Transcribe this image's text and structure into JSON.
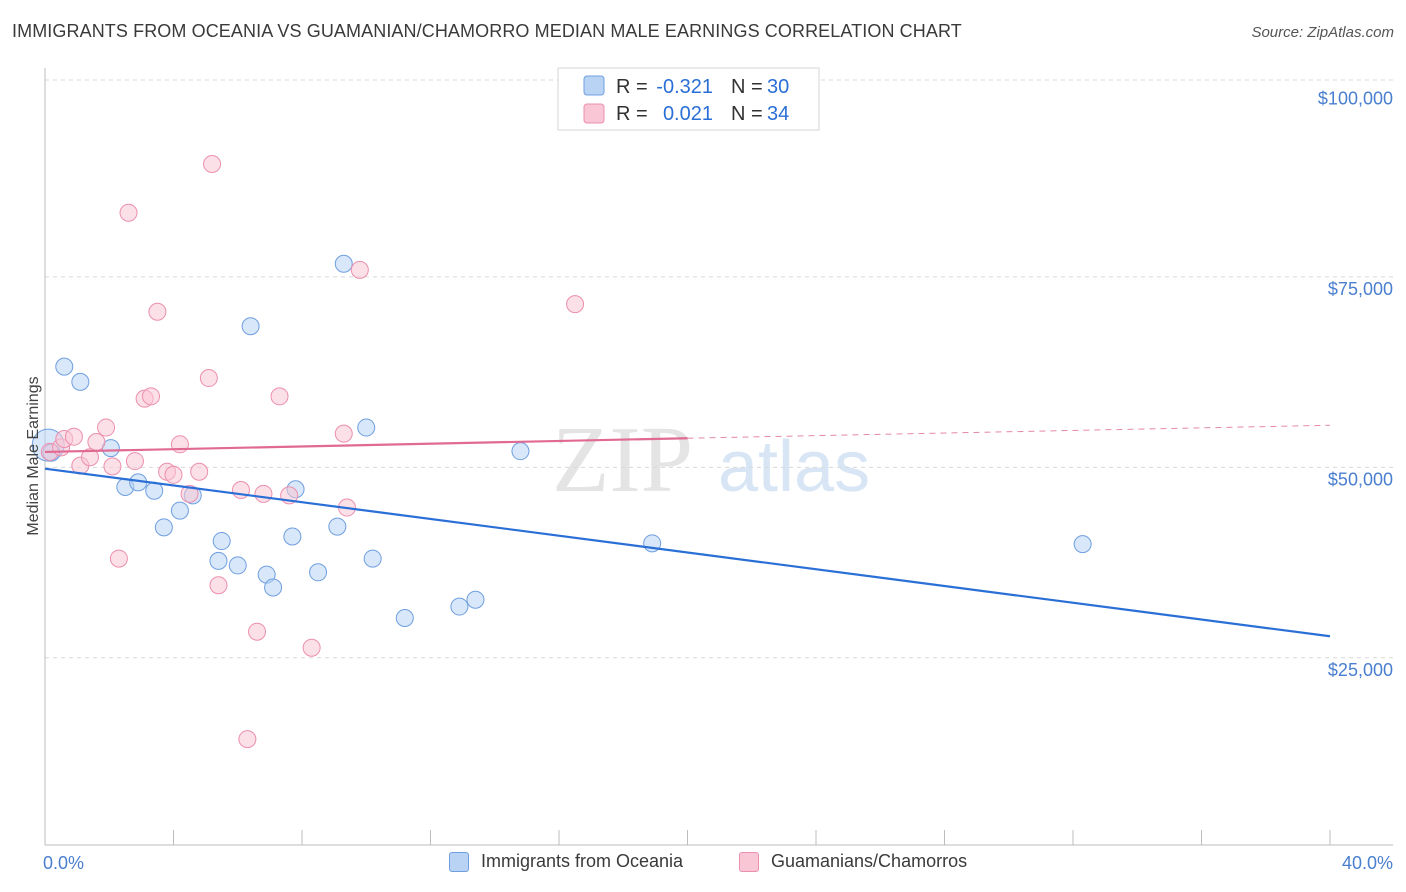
{
  "title": "IMMIGRANTS FROM OCEANIA VS GUAMANIAN/CHAMORRO MEDIAN MALE EARNINGS CORRELATION CHART",
  "source": "Source: ZipAtlas.com",
  "watermark": {
    "zip": "ZIP",
    "atlas": "atlas"
  },
  "colors": {
    "blue_fill": "#b8d3f4",
    "blue_stroke": "#6f9fe0",
    "blue_line": "#2a6fd6",
    "pink_fill": "#f9c6d6",
    "pink_stroke": "#ec8fae",
    "pink_line": "#e06a92",
    "tick_text": "#4a7fcf",
    "grid": "#d8d8d8"
  },
  "legend": {
    "rows": [
      {
        "r_label": "R =",
        "r_value": "-0.321",
        "n_label": "N =",
        "n_value": "30"
      },
      {
        "r_label": "R =",
        "r_value": "0.021",
        "n_label": "N =",
        "n_value": "34"
      }
    ]
  },
  "chart_data": {
    "type": "scatter",
    "title": "IMMIGRANTS FROM OCEANIA VS GUAMANIAN/CHAMORRO MEDIAN MALE EARNINGS CORRELATION CHART",
    "xlabel": "",
    "ylabel": "Median Male Earnings",
    "xlim": [
      0,
      40
    ],
    "ylim": [
      2000,
      104000
    ],
    "x_tick_labels": [
      "0.0%",
      "40.0%"
    ],
    "y_ticks": [
      25000,
      50000,
      75000,
      100000
    ],
    "y_tick_labels": [
      "$25,000",
      "$50,000",
      "$75,000",
      "$100,000"
    ],
    "grid": true,
    "series": [
      {
        "name": "Immigrants from Oceania",
        "color": "blue",
        "points": [
          [
            0.1,
            54500
          ],
          [
            0.6,
            64800
          ],
          [
            1.1,
            62800
          ],
          [
            2.05,
            54100
          ],
          [
            2.5,
            49000
          ],
          [
            2.9,
            49600
          ],
          [
            3.4,
            48500
          ],
          [
            3.7,
            43700
          ],
          [
            4.2,
            45900
          ],
          [
            4.6,
            47900
          ],
          [
            5.4,
            39300
          ],
          [
            5.5,
            41900
          ],
          [
            6.0,
            38700
          ],
          [
            6.4,
            70100
          ],
          [
            6.9,
            37500
          ],
          [
            7.1,
            35800
          ],
          [
            7.8,
            48700
          ],
          [
            7.7,
            42500
          ],
          [
            8.5,
            37800
          ],
          [
            9.1,
            43800
          ],
          [
            9.3,
            78300
          ],
          [
            10.0,
            56800
          ],
          [
            10.2,
            39600
          ],
          [
            11.2,
            31800
          ],
          [
            12.9,
            33300
          ],
          [
            13.4,
            34200
          ],
          [
            14.8,
            53700
          ],
          [
            18.9,
            41600
          ],
          [
            32.3,
            41500
          ],
          [
            0.2,
            53500
          ]
        ],
        "trend": {
          "x": [
            0.0,
            40.0
          ],
          "y": [
            51400,
            29400
          ]
        }
      },
      {
        "name": "Guamanians/Chamorros",
        "color": "pink",
        "points": [
          [
            0.15,
            53600
          ],
          [
            0.5,
            54200
          ],
          [
            0.6,
            55300
          ],
          [
            0.9,
            55600
          ],
          [
            1.1,
            51800
          ],
          [
            1.4,
            52900
          ],
          [
            1.6,
            54900
          ],
          [
            1.9,
            56800
          ],
          [
            2.1,
            51700
          ],
          [
            2.3,
            39600
          ],
          [
            2.6,
            85000
          ],
          [
            2.8,
            52400
          ],
          [
            3.1,
            60600
          ],
          [
            3.3,
            60900
          ],
          [
            3.5,
            72000
          ],
          [
            3.8,
            51000
          ],
          [
            4.0,
            50600
          ],
          [
            4.2,
            54600
          ],
          [
            4.5,
            48100
          ],
          [
            4.8,
            51000
          ],
          [
            5.1,
            63300
          ],
          [
            5.2,
            91400
          ],
          [
            5.4,
            36100
          ],
          [
            6.1,
            48600
          ],
          [
            6.3,
            15900
          ],
          [
            6.6,
            30000
          ],
          [
            6.8,
            48100
          ],
          [
            7.3,
            60900
          ],
          [
            7.6,
            47900
          ],
          [
            8.3,
            27900
          ],
          [
            9.3,
            56000
          ],
          [
            9.4,
            46300
          ],
          [
            9.8,
            77500
          ],
          [
            16.5,
            73000
          ]
        ],
        "trend": {
          "x": [
            0.0,
            20.0
          ],
          "y": [
            53600,
            55400
          ]
        },
        "trend_extension": {
          "x": [
            20.0,
            40.0
          ],
          "y": [
            55400,
            57100
          ]
        }
      }
    ]
  },
  "bottom_legend": [
    {
      "label": "Immigrants from Oceania",
      "color": "blue"
    },
    {
      "label": "Guamanians/Chamorros",
      "color": "pink"
    }
  ]
}
